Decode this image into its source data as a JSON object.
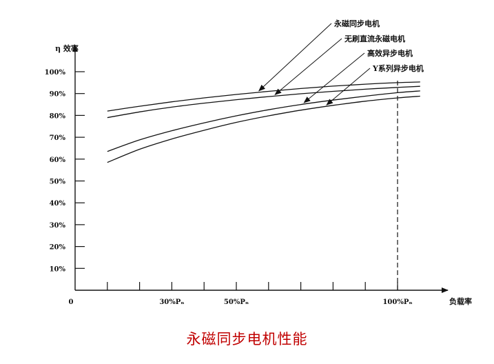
{
  "chart_data": {
    "type": "line",
    "ylabel": "η 效率",
    "xlabel": "负载率",
    "origin_label": "0",
    "yticks": [
      "10%",
      "20%",
      "30%",
      "40%",
      "50%",
      "60%",
      "70%",
      "80%",
      "90%",
      "100%"
    ],
    "ytick_values": [
      10,
      20,
      30,
      40,
      50,
      60,
      70,
      80,
      90,
      100
    ],
    "xtick_labels": [
      {
        "label": "30%Pₙ",
        "x": 30
      },
      {
        "label": "50%Pₙ",
        "x": 50
      },
      {
        "label": "100%Pₙ",
        "x": 100
      }
    ],
    "xtick_marks": [
      10,
      20,
      30,
      40,
      50,
      60,
      70,
      80,
      90,
      100
    ],
    "xlim": [
      0,
      115
    ],
    "ylim": [
      0,
      110
    ],
    "reference_line_x": 100,
    "series": [
      {
        "name": "永磁同步电机",
        "x": [
          10,
          20,
          30,
          40,
          50,
          60,
          70,
          80,
          90,
          100,
          107
        ],
        "y": [
          82,
          84.2,
          86.2,
          88,
          89.6,
          91,
          92.3,
          93.4,
          94.3,
          95,
          95.3
        ]
      },
      {
        "name": "无刷直流永磁电机",
        "x": [
          10,
          20,
          30,
          40,
          50,
          60,
          70,
          80,
          90,
          100,
          107
        ],
        "y": [
          79,
          81.6,
          83.8,
          85.6,
          87.2,
          88.6,
          89.9,
          91,
          92,
          92.8,
          93.3
        ]
      },
      {
        "name": "高效异步电机",
        "x": [
          10,
          20,
          30,
          40,
          50,
          60,
          70,
          80,
          90,
          100,
          107
        ],
        "y": [
          63.5,
          68.8,
          73,
          76.6,
          79.8,
          82.6,
          85,
          87,
          88.8,
          90.4,
          91.2
        ]
      },
      {
        "name": "Y系列异步电机",
        "x": [
          10,
          20,
          30,
          40,
          50,
          60,
          70,
          80,
          90,
          100,
          107
        ],
        "y": [
          58.5,
          64.5,
          69.2,
          73.2,
          76.8,
          79.8,
          82.4,
          84.6,
          86.5,
          88,
          88.8
        ]
      }
    ]
  },
  "caption": "永磁同步电机性能"
}
